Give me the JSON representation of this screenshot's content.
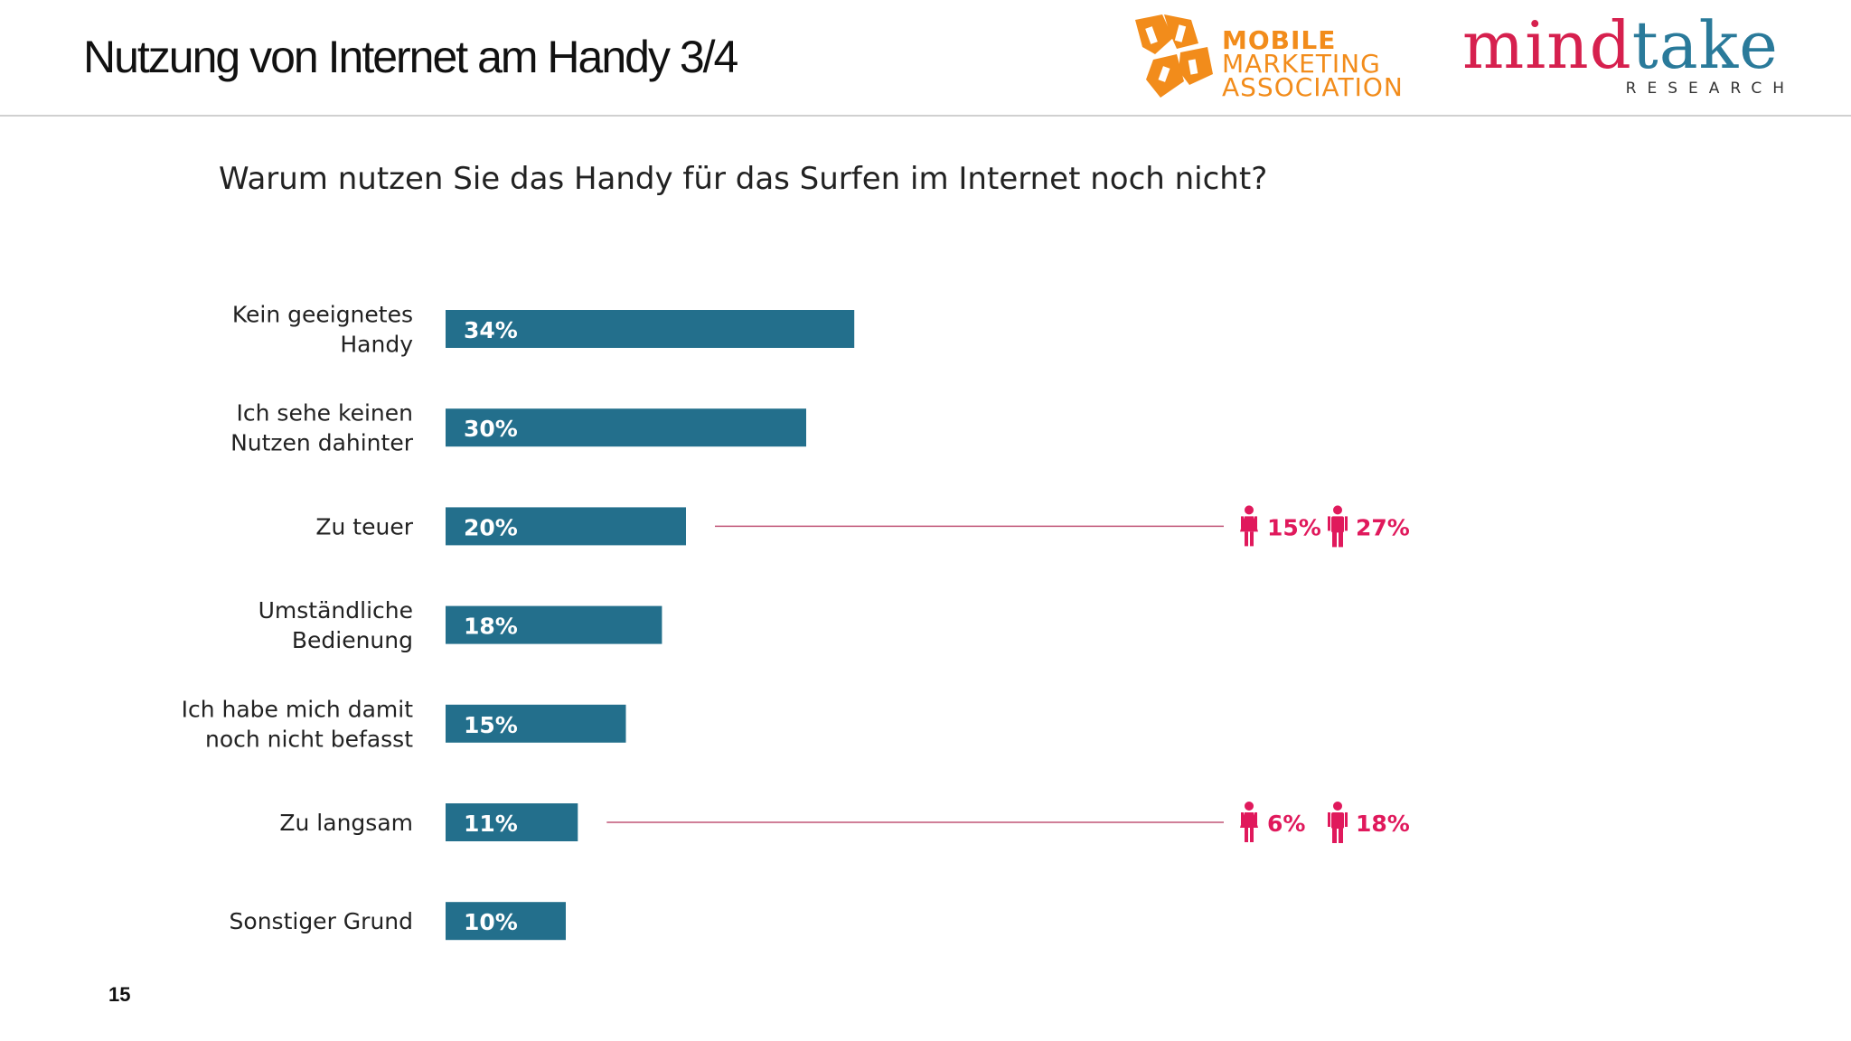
{
  "header": {
    "title": "Nutzung von Internet am Handy 3/4",
    "logo_mma": {
      "line1": "MOBILE",
      "line2": "MARKETING",
      "line3": "ASSOCIATION",
      "color": "#f28c1b"
    },
    "logo_mindtake": {
      "word_part1": "mind",
      "word_part2": "take",
      "subtitle": "RESEARCH",
      "color_primary": "#d6204e",
      "color_secondary": "#2a7a9a"
    }
  },
  "footer": {
    "page_number": "15"
  },
  "colors": {
    "bar": "#236f8c",
    "bar_label": "#ffffff",
    "accent": "#e0195c",
    "connector_line": "#c05577",
    "category_text": "#222222"
  },
  "chart_data": {
    "type": "bar",
    "orientation": "horizontal",
    "title": "Warum nutzen Sie das Handy für das Surfen im Internet noch nicht?",
    "categories": [
      [
        "Kein geeignetes",
        "Handy"
      ],
      [
        "Ich sehe keinen",
        "Nutzen dahinter"
      ],
      [
        "Zu teuer"
      ],
      [
        "Umständliche",
        "Bedienung"
      ],
      [
        "Ich habe mich damit",
        "noch nicht befasst"
      ],
      [
        "Zu langsam"
      ],
      [
        "Sonstiger Grund"
      ]
    ],
    "values": [
      34,
      30,
      20,
      18,
      15,
      11,
      10
    ],
    "value_labels": [
      "34%",
      "30%",
      "20%",
      "18%",
      "15%",
      "11%",
      "10%"
    ],
    "unit": "%",
    "xlim": [
      0,
      100
    ],
    "grid": false,
    "legend": "none",
    "gender_breakdown": [
      {
        "category_index": 2,
        "female": "15%",
        "male": "27%",
        "female_icon": "female-person-icon",
        "male_icon": "male-person-icon"
      },
      {
        "category_index": 5,
        "female": "6%",
        "male": "18%",
        "female_icon": "female-person-icon",
        "male_icon": "male-person-icon"
      }
    ]
  }
}
